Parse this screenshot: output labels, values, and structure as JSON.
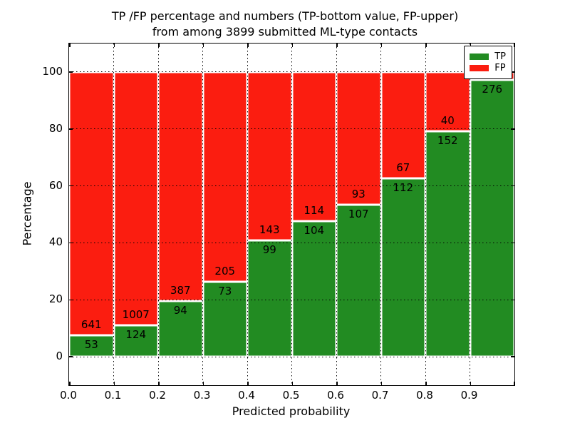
{
  "title": {
    "line1": "TP /FP percentage and numbers (TP-bottom value, FP-upper)",
    "line2": "from among 3899 submitted ML-type contacts"
  },
  "axes": {
    "xlabel": "Predicted probability",
    "ylabel": "Percentage",
    "x_tick_labels": [
      "0.0",
      "0.1",
      "0.2",
      "0.3",
      "0.4",
      "0.5",
      "0.6",
      "0.7",
      "0.8",
      "0.9"
    ],
    "y_tick_labels": [
      "0",
      "20",
      "40",
      "60",
      "80",
      "100"
    ],
    "y_tick_values": [
      0,
      20,
      40,
      60,
      80,
      100
    ],
    "xlim": [
      0.0,
      1.0
    ],
    "ylim": [
      -10,
      110
    ],
    "grid": "dotted black, both axes"
  },
  "legend": {
    "position": "upper right",
    "items": [
      {
        "label": "TP",
        "color": "#228b22"
      },
      {
        "label": "FP",
        "color": "#fb1d10"
      }
    ]
  },
  "colors": {
    "tp_green": "#228b22",
    "fp_red": "#fb1d10",
    "bar_edge": "#ffffff",
    "text": "#000000",
    "background": "#ffffff"
  },
  "chart_data": {
    "type": "bar",
    "variant": "stacked-percentage",
    "title": "TP /FP percentage and numbers (TP-bottom value, FP-upper) from among 3899 submitted ML-type contacts",
    "xlabel": "Predicted probability",
    "ylabel": "Percentage",
    "xlim": [
      0.0,
      1.0
    ],
    "ylim": [
      -10,
      110
    ],
    "grid": true,
    "legend_position": "upper right",
    "bin_width": 0.1,
    "bin_starts": [
      0.0,
      0.1,
      0.2,
      0.3,
      0.4,
      0.5,
      0.6,
      0.7,
      0.8,
      0.9
    ],
    "series": [
      {
        "name": "TP",
        "color": "#228b22",
        "counts": [
          53,
          124,
          94,
          73,
          99,
          104,
          107,
          112,
          152,
          276
        ]
      },
      {
        "name": "FP",
        "color": "#fb1d10",
        "counts": [
          641,
          1007,
          387,
          205,
          143,
          114,
          93,
          67,
          40,
          null
        ]
      }
    ],
    "tp_percent": [
      7.64,
      10.96,
      19.54,
      26.26,
      40.91,
      47.71,
      53.5,
      62.57,
      79.17,
      97.18
    ],
    "note_fp_last_label": "FP count label of the 0.9-1.0 bar is hidden behind the legend in the image"
  }
}
